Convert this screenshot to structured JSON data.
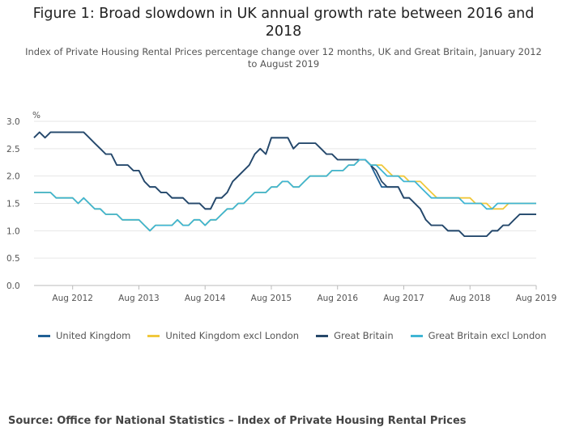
{
  "title": "Figure 1: Broad slowdown in UK annual growth rate between 2016 and 2018",
  "subtitle": "Index of Private Housing Rental Prices percentage change over 12 months, UK and Great Britain, January 2012 to August 2019",
  "source": "Source: Office for National Statistics – Index of Private Housing Rental Prices",
  "chart_data": {
    "type": "line",
    "title": "Figure 1: Broad slowdown in UK annual growth rate between 2016 and 2018",
    "ylabel": "%",
    "xlabel": "",
    "ylim": [
      0,
      3
    ],
    "yticks": [
      "0.0",
      "0.5",
      "1.0",
      "1.5",
      "2.0",
      "2.5",
      "3.0"
    ],
    "xticks": [
      "Aug 2012",
      "Aug 2013",
      "Aug 2014",
      "Aug 2015",
      "Aug 2016",
      "Aug 2017",
      "Aug 2018",
      "Aug 2019"
    ],
    "x_start": "Jan 2012",
    "x_end": "Aug 2019",
    "grid": true,
    "legend_position": "bottom",
    "series": [
      {
        "name": "United Kingdom",
        "color": "#206095",
        "values": [
          2.7,
          2.8,
          2.7,
          2.8,
          2.8,
          2.8,
          2.8,
          2.8,
          2.8,
          2.8,
          2.7,
          2.6,
          2.5,
          2.4,
          2.4,
          2.2,
          2.2,
          2.2,
          2.1,
          2.1,
          1.9,
          1.8,
          1.8,
          1.7,
          1.7,
          1.6,
          1.6,
          1.6,
          1.5,
          1.5,
          1.5,
          1.4,
          1.4,
          1.6,
          1.6,
          1.7,
          1.9,
          2.0,
          2.1,
          2.2,
          2.4,
          2.5,
          2.4,
          2.7,
          2.7,
          2.7,
          2.7,
          2.5,
          2.6,
          2.6,
          2.6,
          2.6,
          2.5,
          2.4,
          2.4,
          2.3,
          2.3,
          2.3,
          2.3,
          2.3,
          2.3,
          2.2,
          2.0,
          1.8,
          1.8,
          1.8,
          1.8,
          1.6,
          1.6,
          1.5,
          1.4,
          1.2,
          1.1,
          1.1,
          1.1,
          1.0,
          1.0,
          1.0,
          0.9,
          0.9,
          0.9,
          0.9,
          0.9,
          1.0,
          1.0,
          1.1,
          1.1,
          1.2,
          1.3,
          1.3,
          1.3,
          1.3
        ]
      },
      {
        "name": "United Kingdom excl London",
        "color": "#f0c83c",
        "values": [
          1.7,
          1.7,
          1.7,
          1.7,
          1.6,
          1.6,
          1.6,
          1.6,
          1.5,
          1.6,
          1.5,
          1.4,
          1.4,
          1.3,
          1.3,
          1.3,
          1.2,
          1.2,
          1.2,
          1.2,
          1.1,
          1.0,
          1.1,
          1.1,
          1.1,
          1.1,
          1.2,
          1.1,
          1.1,
          1.2,
          1.2,
          1.1,
          1.2,
          1.2,
          1.3,
          1.4,
          1.4,
          1.5,
          1.5,
          1.6,
          1.7,
          1.7,
          1.7,
          1.8,
          1.8,
          1.9,
          1.9,
          1.8,
          1.8,
          1.9,
          2.0,
          2.0,
          2.0,
          2.0,
          2.1,
          2.1,
          2.1,
          2.2,
          2.2,
          2.3,
          2.3,
          2.2,
          2.2,
          2.2,
          2.1,
          2.0,
          2.0,
          2.0,
          1.9,
          1.9,
          1.9,
          1.8,
          1.7,
          1.6,
          1.6,
          1.6,
          1.6,
          1.6,
          1.6,
          1.6,
          1.5,
          1.5,
          1.5,
          1.4,
          1.4,
          1.4,
          1.5,
          1.5,
          1.5,
          1.5,
          1.5,
          1.5
        ]
      },
      {
        "name": "Great Britain",
        "color": "#27486a",
        "values": [
          2.7,
          2.8,
          2.7,
          2.8,
          2.8,
          2.8,
          2.8,
          2.8,
          2.8,
          2.8,
          2.7,
          2.6,
          2.5,
          2.4,
          2.4,
          2.2,
          2.2,
          2.2,
          2.1,
          2.1,
          1.9,
          1.8,
          1.8,
          1.7,
          1.7,
          1.6,
          1.6,
          1.6,
          1.5,
          1.5,
          1.5,
          1.4,
          1.4,
          1.6,
          1.6,
          1.7,
          1.9,
          2.0,
          2.1,
          2.2,
          2.4,
          2.5,
          2.4,
          2.7,
          2.7,
          2.7,
          2.7,
          2.5,
          2.6,
          2.6,
          2.6,
          2.6,
          2.5,
          2.4,
          2.4,
          2.3,
          2.3,
          2.3,
          2.3,
          2.3,
          2.3,
          2.2,
          2.1,
          1.9,
          1.8,
          1.8,
          1.8,
          1.6,
          1.6,
          1.5,
          1.4,
          1.2,
          1.1,
          1.1,
          1.1,
          1.0,
          1.0,
          1.0,
          0.9,
          0.9,
          0.9,
          0.9,
          0.9,
          1.0,
          1.0,
          1.1,
          1.1,
          1.2,
          1.3,
          1.3,
          1.3,
          1.3
        ]
      },
      {
        "name": "Great Britain excl London",
        "color": "#3fb5d4",
        "values": [
          1.7,
          1.7,
          1.7,
          1.7,
          1.6,
          1.6,
          1.6,
          1.6,
          1.5,
          1.6,
          1.5,
          1.4,
          1.4,
          1.3,
          1.3,
          1.3,
          1.2,
          1.2,
          1.2,
          1.2,
          1.1,
          1.0,
          1.1,
          1.1,
          1.1,
          1.1,
          1.2,
          1.1,
          1.1,
          1.2,
          1.2,
          1.1,
          1.2,
          1.2,
          1.3,
          1.4,
          1.4,
          1.5,
          1.5,
          1.6,
          1.7,
          1.7,
          1.7,
          1.8,
          1.8,
          1.9,
          1.9,
          1.8,
          1.8,
          1.9,
          2.0,
          2.0,
          2.0,
          2.0,
          2.1,
          2.1,
          2.1,
          2.2,
          2.2,
          2.3,
          2.3,
          2.2,
          2.2,
          2.1,
          2.0,
          2.0,
          2.0,
          1.9,
          1.9,
          1.9,
          1.8,
          1.7,
          1.6,
          1.6,
          1.6,
          1.6,
          1.6,
          1.6,
          1.5,
          1.5,
          1.5,
          1.5,
          1.4,
          1.4,
          1.5,
          1.5,
          1.5,
          1.5,
          1.5,
          1.5,
          1.5,
          1.5
        ]
      }
    ]
  }
}
